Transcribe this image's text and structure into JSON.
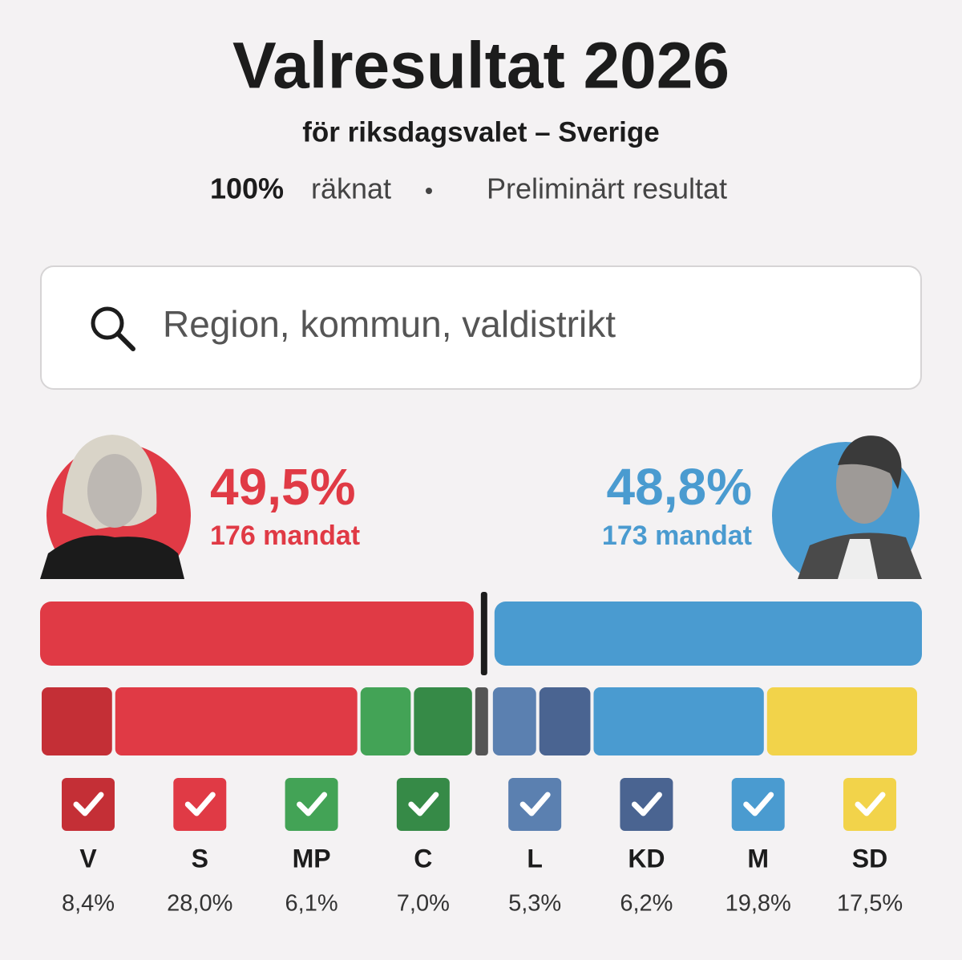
{
  "header": {
    "title": "Valresultat 2026",
    "subtitle": "för riksdagsvalet – Sverige",
    "counted": "100%",
    "counted_text": "räknat",
    "status": "Preliminärt resultat"
  },
  "search": {
    "placeholder": "Region, kommun, valdistrikt"
  },
  "blocs": [
    {
      "value": 49.5,
      "value_label": "49,5%",
      "seats": "176 mandat",
      "color": "#e03a45"
    },
    {
      "value": 48.8,
      "value_label": "48,8%",
      "seats": "173 mandat",
      "color": "#4a9bd0"
    }
  ],
  "parties": {
    "names": [
      "V",
      "S",
      "MP",
      "C",
      "L",
      "KD",
      "M",
      "SD"
    ],
    "values": [
      8.4,
      28.0,
      6.1,
      7.0,
      5.3,
      6.2,
      19.8,
      17.5
    ],
    "value_labels": [
      "8,4%",
      "28,0%",
      "6,1%",
      "7,0%",
      "5,3%",
      "6,2%",
      "19,8%",
      "17,5%"
    ],
    "colors": [
      "#c42f36",
      "#e03a45",
      "#43a356",
      "#368a47",
      "#5b80b0",
      "#4a6491",
      "#4a9bd0",
      "#f2d34a"
    ],
    "left_count": 4
  }
}
